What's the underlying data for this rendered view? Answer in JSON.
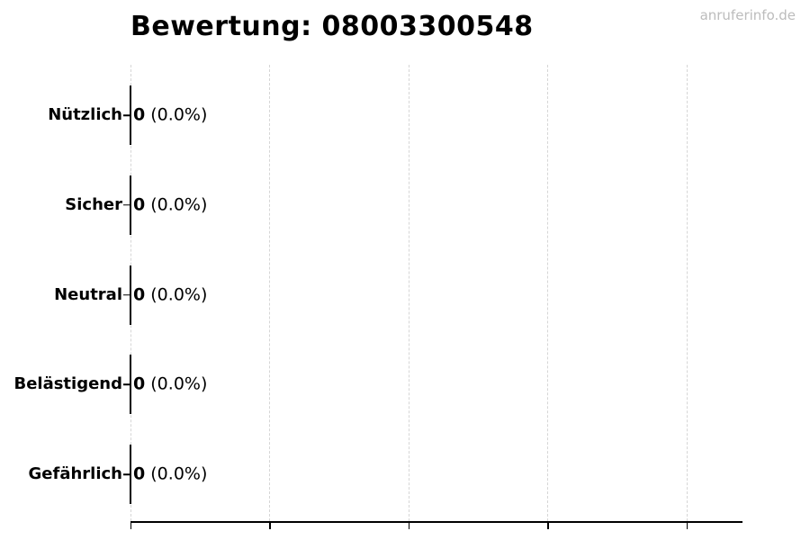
{
  "title": "Bewertung: 08003300548",
  "watermark": "anruferinfo.de",
  "chart_data": {
    "type": "bar",
    "orientation": "horizontal",
    "title": "Bewertung: 08003300548",
    "categories": [
      "Nützlich",
      "Sicher",
      "Neutral",
      "Belästigend",
      "Gefährlich"
    ],
    "values": [
      0,
      0,
      0,
      0,
      0
    ],
    "counts": [
      "0",
      "0",
      "0",
      "0",
      "0"
    ],
    "percents": [
      "(0.0%)",
      "(0.0%)",
      "(0.0%)",
      "(0.0%)",
      "(0.0%)"
    ],
    "xlabel": "",
    "ylabel": "",
    "x_tick_count": 5,
    "x_tick_labels": [],
    "grid": true,
    "legend": false
  },
  "colors": {
    "background": "#ffffff",
    "text": "#000000",
    "axis": "#000000",
    "gridline": "#d6d6d6",
    "watermark": "#bcbcbc"
  }
}
